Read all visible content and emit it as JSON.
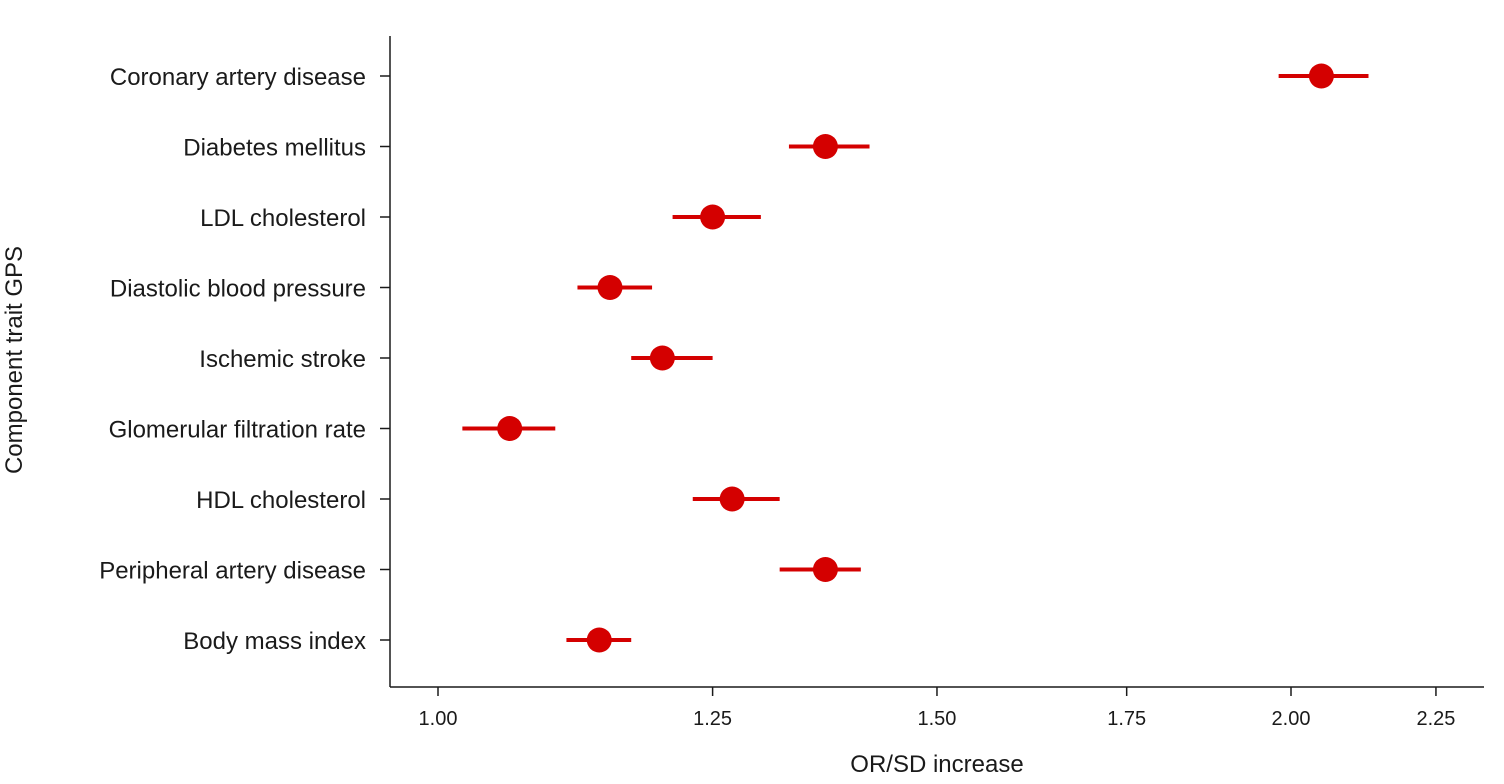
{
  "chart_data": {
    "type": "scatter",
    "subtype": "forest-plot",
    "title": "",
    "xlabel": "OR/SD increase",
    "ylabel": "Component trait GPS",
    "xscale": "log",
    "xlim": [
      0.94,
      2.33
    ],
    "xticks": [
      "1.00",
      "1.25",
      "1.50",
      "1.75",
      "2.00",
      "2.25"
    ],
    "grid": false,
    "legend": "none",
    "marker_color": "#d40000",
    "categories": [
      "Coronary artery disease",
      "Diabetes mellitus",
      "LDL cholesterol",
      "Diastolic blood pressure",
      "Ischemic stroke",
      "Glomerular filtration rate",
      "HDL cholesterol",
      "Peripheral artery disease",
      "Body mass index"
    ],
    "points": [
      {
        "name": "Coronary artery disease",
        "or": 2.05,
        "ci_low": 1.98,
        "ci_high": 2.13
      },
      {
        "name": "Diabetes mellitus",
        "or": 1.37,
        "ci_low": 1.33,
        "ci_high": 1.42
      },
      {
        "name": "LDL cholesterol",
        "or": 1.25,
        "ci_low": 1.21,
        "ci_high": 1.3
      },
      {
        "name": "Diastolic blood pressure",
        "or": 1.15,
        "ci_low": 1.12,
        "ci_high": 1.19
      },
      {
        "name": "Ischemic stroke",
        "or": 1.2,
        "ci_low": 1.17,
        "ci_high": 1.25
      },
      {
        "name": "Glomerular filtration rate",
        "or": 1.06,
        "ci_low": 1.02,
        "ci_high": 1.1
      },
      {
        "name": "HDL cholesterol",
        "or": 1.27,
        "ci_low": 1.23,
        "ci_high": 1.32
      },
      {
        "name": "Peripheral artery disease",
        "or": 1.37,
        "ci_low": 1.32,
        "ci_high": 1.41
      },
      {
        "name": "Body mass index",
        "or": 1.14,
        "ci_low": 1.11,
        "ci_high": 1.17
      }
    ]
  }
}
